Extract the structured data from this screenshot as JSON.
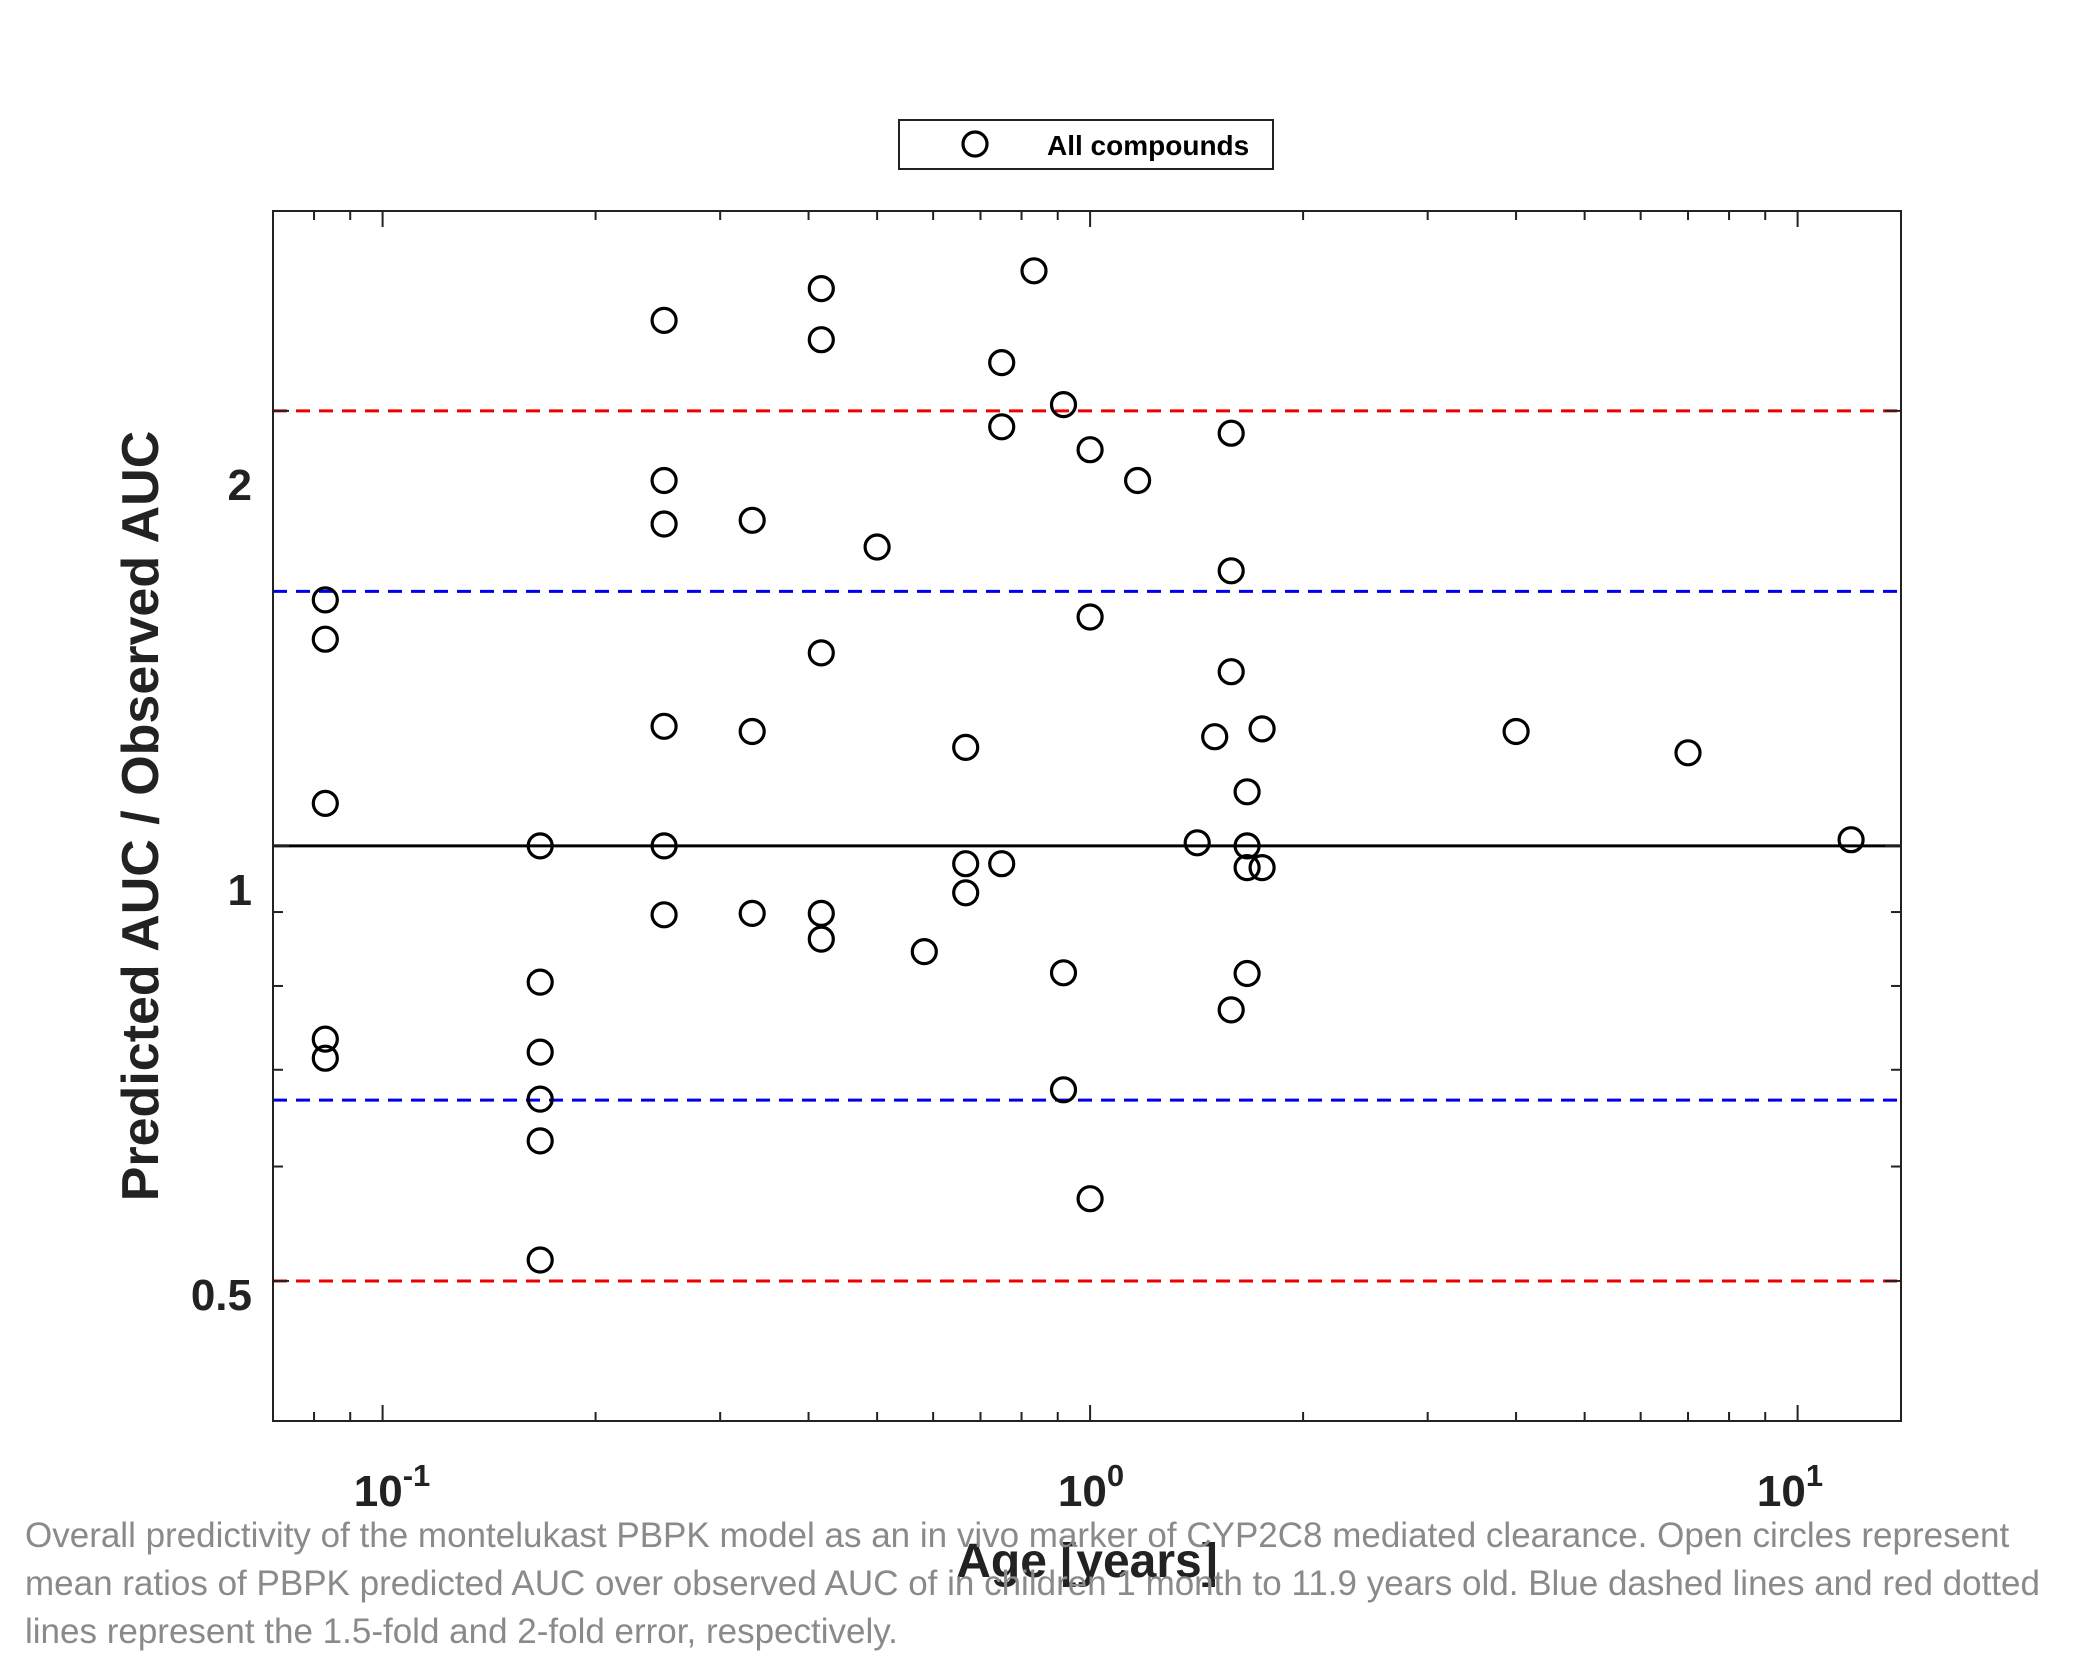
{
  "caption": "Overall predictivity of the montelukast PBPK model as an in vivo marker of CYP2C8 mediated clearance. Open circles represent mean ratios of PBPK predicted AUC over observed AUC of in children 1 month to 11.9 years old. Blue dashed lines and red dotted lines represent the 1.5-fold and 2-fold error, respectively.",
  "chart_data": {
    "type": "scatter",
    "title": "",
    "xlabel": "Age [years]",
    "ylabel": "Predicted AUC / Observed AUC",
    "xscale": "log",
    "yscale": "log",
    "xlim": [
      0.07,
      14
    ],
    "ylim": [
      0.4,
      2.75
    ],
    "x_ticks": [
      {
        "value": 0.1,
        "base": "10",
        "exp": "-1"
      },
      {
        "value": 1,
        "base": "10",
        "exp": "0"
      },
      {
        "value": 10,
        "base": "10",
        "exp": "1"
      }
    ],
    "y_ticks": [
      {
        "value": 0.5,
        "label": "0.5"
      },
      {
        "value": 1,
        "label": "1"
      },
      {
        "value": 2,
        "label": "2"
      }
    ],
    "grid": false,
    "legend_position": "top-center",
    "legend": [
      {
        "name": "All compounds",
        "marker": "open-circle"
      }
    ],
    "reference_lines": [
      {
        "y": 1,
        "color": "#000000",
        "style": "solid"
      },
      {
        "y": 1.5,
        "color": "#0000ee",
        "style": "dashed"
      },
      {
        "y": 0.667,
        "color": "#0000ee",
        "style": "dashed"
      },
      {
        "y": 2,
        "color": "#ee0000",
        "style": "dashed"
      },
      {
        "y": 0.5,
        "color": "#ee0000",
        "style": "dashed"
      }
    ],
    "series": [
      {
        "name": "All compounds",
        "points": [
          [
            0.083,
            1.48
          ],
          [
            0.083,
            1.39
          ],
          [
            0.083,
            1.07
          ],
          [
            0.083,
            0.735
          ],
          [
            0.083,
            0.713
          ],
          [
            0.167,
            1.0
          ],
          [
            0.167,
            0.805
          ],
          [
            0.167,
            0.72
          ],
          [
            0.167,
            0.668
          ],
          [
            0.167,
            0.625
          ],
          [
            0.167,
            0.517
          ],
          [
            0.25,
            2.31
          ],
          [
            0.25,
            1.79
          ],
          [
            0.25,
            1.67
          ],
          [
            0.25,
            1.21
          ],
          [
            0.25,
            1.0
          ],
          [
            0.25,
            0.896
          ],
          [
            0.333,
            1.68
          ],
          [
            0.333,
            1.2
          ],
          [
            0.333,
            0.898
          ],
          [
            0.417,
            2.43
          ],
          [
            0.417,
            2.24
          ],
          [
            0.417,
            1.36
          ],
          [
            0.417,
            0.898
          ],
          [
            0.417,
            0.862
          ],
          [
            0.5,
            1.61
          ],
          [
            0.583,
            0.845
          ],
          [
            0.667,
            1.17
          ],
          [
            0.667,
            0.972
          ],
          [
            0.667,
            0.928
          ],
          [
            0.75,
            2.16
          ],
          [
            0.75,
            1.95
          ],
          [
            0.75,
            0.972
          ],
          [
            0.833,
            2.5
          ],
          [
            0.917,
            2.02
          ],
          [
            0.917,
            0.817
          ],
          [
            0.917,
            0.678
          ],
          [
            1.0,
            1.88
          ],
          [
            1.0,
            1.44
          ],
          [
            1.0,
            0.57
          ],
          [
            1.167,
            1.79
          ],
          [
            1.417,
            1.005
          ],
          [
            1.5,
            1.19
          ],
          [
            1.583,
            1.93
          ],
          [
            1.583,
            1.55
          ],
          [
            1.583,
            1.32
          ],
          [
            1.583,
            0.77
          ],
          [
            1.667,
            1.09
          ],
          [
            1.667,
            1.0
          ],
          [
            1.667,
            0.966
          ],
          [
            1.667,
            0.816
          ],
          [
            1.75,
            1.205
          ],
          [
            1.75,
            0.966
          ],
          [
            4.0,
            1.2
          ],
          [
            7.0,
            1.16
          ],
          [
            11.9,
            1.01
          ]
        ]
      }
    ]
  }
}
